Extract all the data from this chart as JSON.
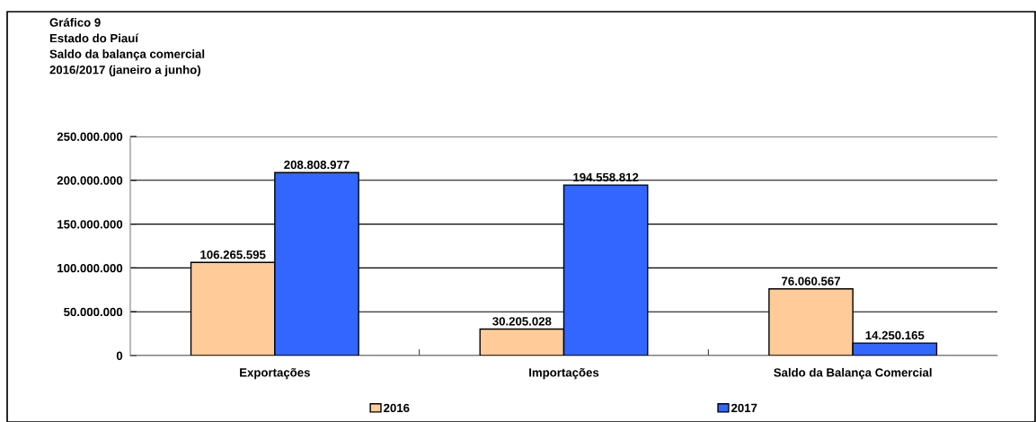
{
  "chart_data": {
    "type": "bar",
    "title": "Gráfico 9\nEstado do Piauí\nSaldo da balança comercial\n2016/2017 (janeiro a junho)",
    "categories": [
      "Exportações",
      "Importações",
      "Saldo da Balança Comercial"
    ],
    "series": [
      {
        "name": "2016",
        "color": "#ffcc99",
        "values": [
          106265595,
          30205028,
          76060567
        ],
        "value_labels": [
          "106.265.595",
          "30.205.028",
          "76.060.567"
        ]
      },
      {
        "name": "2017",
        "color": "#3366ff",
        "values": [
          208808977,
          194558812,
          14250165
        ],
        "value_labels": [
          "208.808.977",
          "194.558.812",
          "14.250.165"
        ]
      }
    ],
    "ylim": [
      0,
      250000000
    ],
    "yticks": [
      {
        "value": 0,
        "label": "0"
      },
      {
        "value": 50000000,
        "label": "50.000.000"
      },
      {
        "value": 100000000,
        "label": "100.000.000"
      },
      {
        "value": 150000000,
        "label": "150.000.000"
      },
      {
        "value": 200000000,
        "label": "200.000.000"
      },
      {
        "value": 250000000,
        "label": "250.000.000"
      }
    ],
    "grid": "y",
    "legend": "bottom"
  }
}
